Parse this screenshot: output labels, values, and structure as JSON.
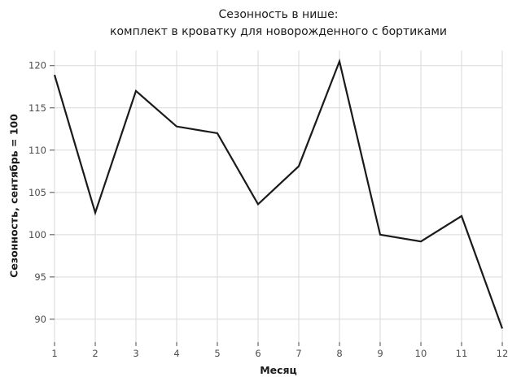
{
  "title": {
    "line1": "Сезонность в нише:",
    "line2": "комплект в кроватку для новорожденного с бортиками"
  },
  "chart_data": {
    "type": "line",
    "x": [
      1,
      2,
      3,
      4,
      5,
      6,
      7,
      8,
      9,
      10,
      11,
      12
    ],
    "values": [
      118.9,
      102.6,
      117.0,
      112.8,
      112.0,
      103.6,
      108.1,
      120.5,
      100.0,
      99.2,
      102.2,
      88.9
    ],
    "title": "Сезонность в нише: комплект в кроватку для новорожденного с бортиками",
    "xlabel": "Месяц",
    "ylabel": "Сезонность, сентябрь = 100",
    "x_ticks": [
      1,
      2,
      3,
      4,
      5,
      6,
      7,
      8,
      9,
      10,
      11,
      12
    ],
    "y_ticks": [
      90,
      95,
      100,
      105,
      110,
      115,
      120
    ],
    "xlim": [
      1,
      12
    ],
    "ylim": [
      87.3,
      121.8
    ],
    "grid": true,
    "legend": "none",
    "colors": {
      "line": "#1a1a1a",
      "grid": "#d9d9d9",
      "tick": "#4d4d4d",
      "tick_label": "#4d4d4d",
      "background": "#ffffff"
    }
  }
}
